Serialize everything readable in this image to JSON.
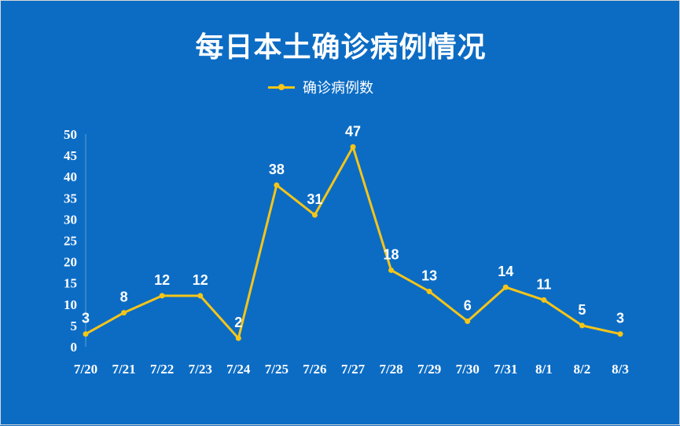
{
  "chart_data": {
    "type": "line",
    "title": "每日本土确诊病例情况",
    "categories": [
      "7/20",
      "7/21",
      "7/22",
      "7/23",
      "7/24",
      "7/25",
      "7/26",
      "7/27",
      "7/28",
      "7/29",
      "7/30",
      "7/31",
      "8/1",
      "8/2",
      "8/3"
    ],
    "series": [
      {
        "name": "确诊病例数",
        "values": [
          3,
          8,
          12,
          12,
          2,
          38,
          31,
          47,
          18,
          13,
          6,
          14,
          11,
          5,
          3
        ]
      }
    ],
    "yticks": [
      "0",
      "5",
      "10",
      "15",
      "20",
      "25",
      "30",
      "35",
      "40",
      "45",
      "50"
    ],
    "ylim": [
      0,
      50
    ],
    "grid": false,
    "legend": "top-center",
    "colors": {
      "background": "#0c6cc4",
      "line": "#f5c518",
      "text": "#ffffff"
    }
  }
}
